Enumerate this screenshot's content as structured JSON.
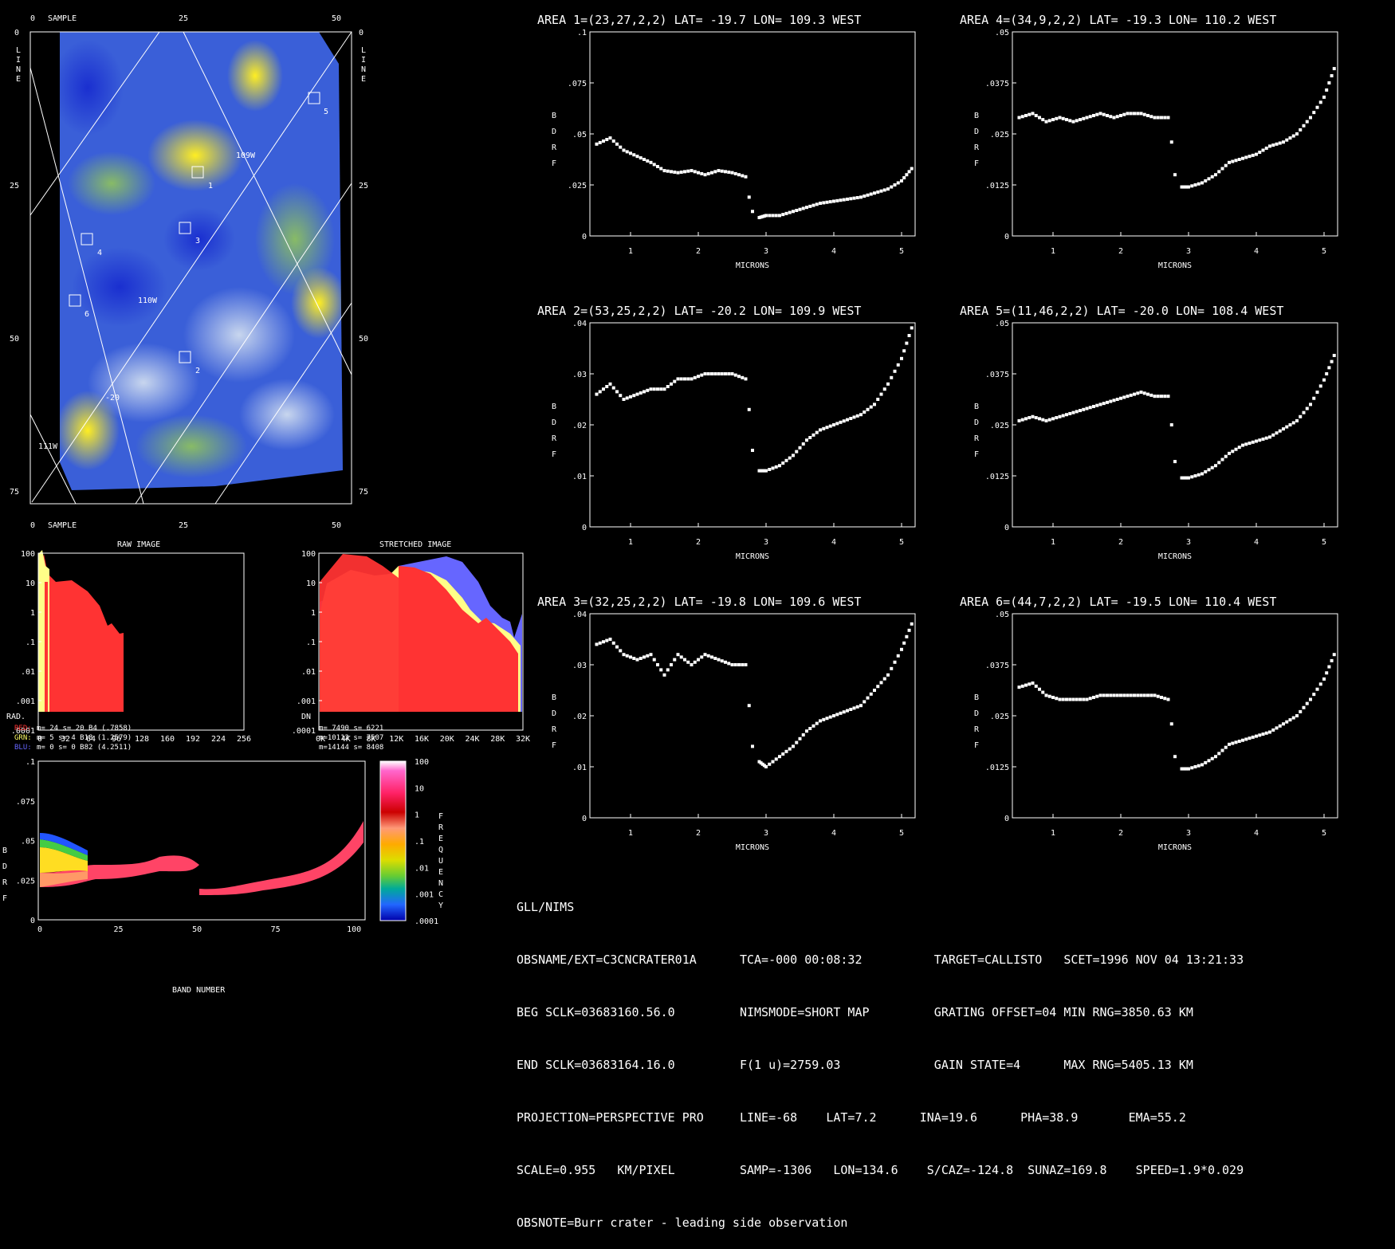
{
  "image_panel": {
    "sample_label": "SAMPLE",
    "line_label": [
      "L",
      "I",
      "N",
      "E"
    ],
    "sample_ticks": [
      "0",
      "25",
      "50"
    ],
    "line_ticks": [
      "0",
      "25",
      "50",
      "75"
    ],
    "area_markers": [
      "1",
      "2",
      "3",
      "4",
      "5",
      "6"
    ],
    "grid_labels": [
      "109W",
      "110W",
      "111W",
      "-20"
    ]
  },
  "histograms": {
    "raw": {
      "title": "RAW IMAGE",
      "y_ticks": [
        "100",
        "10",
        "1",
        ".1",
        ".01",
        ".001",
        ".0001"
      ],
      "x_ticks": [
        "0",
        "32",
        "64",
        "96",
        "128",
        "160",
        "192",
        "224",
        "256"
      ],
      "x_prefix": "RAD.",
      "stats": [
        {
          "label": "RED:",
          "text": "m=   24 s=   20 B4  (.7858)",
          "color": "#ff3333"
        },
        {
          "label": "GRN:",
          "text": "m=    5 s=    4 B18 (1.2579)",
          "color": "#ffff66"
        },
        {
          "label": "BLU:",
          "text": "m=    0 s=    0 B82 (4.2511)",
          "color": "#6666ff"
        }
      ]
    },
    "stretched": {
      "title": "STRETCHED IMAGE",
      "y_ticks": [
        "100",
        "10",
        "1",
        ".1",
        ".01",
        ".001",
        ".0001"
      ],
      "x_ticks": [
        "0K",
        "4K",
        "8K",
        "12K",
        "16K",
        "20K",
        "24K",
        "28K",
        "32K"
      ],
      "x_prefix": "DN",
      "stats": [
        "m= 7490 s= 6221",
        "m=10112 s= 7507",
        "m=14144 s= 8408"
      ]
    }
  },
  "density": {
    "ylabel": [
      "B",
      "D",
      "R",
      "F"
    ],
    "y_ticks": [
      ".1",
      ".075",
      ".05",
      ".025",
      "0"
    ],
    "x_ticks": [
      "0",
      "25",
      "50",
      "75",
      "100"
    ],
    "xlabel": "BAND NUMBER",
    "colorbar_ticks": [
      "100",
      "10",
      "1",
      ".1",
      ".01",
      ".001",
      ".0001"
    ],
    "colorbar_label": [
      "F",
      "R",
      "E",
      "Q",
      "U",
      "E",
      "N",
      "C",
      "Y"
    ]
  },
  "spectra_common": {
    "xlabel": "MICRONS",
    "ylabel": [
      "B",
      "D",
      "R",
      "F"
    ],
    "x_ticks": [
      "1",
      "2",
      "3",
      "4",
      "5"
    ]
  },
  "spectra": [
    {
      "title": "AREA 1=(23,27,2,2) LAT= -19.7 LON= 109.3 WEST",
      "y_ticks": [
        ".1",
        ".075",
        ".05",
        ".025",
        "0"
      ]
    },
    {
      "title": "AREA 4=(34,9,2,2) LAT= -19.3 LON= 110.2 WEST",
      "y_ticks": [
        ".05",
        ".0375",
        ".025",
        ".0125",
        "0"
      ]
    },
    {
      "title": "AREA 2=(53,25,2,2) LAT= -20.2 LON= 109.9 WEST",
      "y_ticks": [
        ".04",
        ".03",
        ".02",
        ".01",
        "0"
      ]
    },
    {
      "title": "AREA 5=(11,46,2,2) LAT= -20.0 LON= 108.4 WEST",
      "y_ticks": [
        ".05",
        ".0375",
        ".025",
        ".0125",
        "0"
      ]
    },
    {
      "title": "AREA 3=(32,25,2,2) LAT= -19.8 LON= 109.6 WEST",
      "y_ticks": [
        ".04",
        ".03",
        ".02",
        ".01",
        "0"
      ]
    },
    {
      "title": "AREA 6=(44,7,2,2) LAT= -19.5 LON= 110.4 WEST",
      "y_ticks": [
        ".05",
        ".0375",
        ".025",
        ".0125",
        "0"
      ]
    }
  ],
  "chart_data": [
    {
      "type": "scatter",
      "title": "AREA 1=(23,27,2,2) LAT= -19.7 LON= 109.3 WEST",
      "xlabel": "MICRONS",
      "ylabel": "BDRF",
      "xlim": [
        0.4,
        5.2
      ],
      "ylim": [
        0,
        0.1
      ],
      "x": [
        0.5,
        0.7,
        0.9,
        1.1,
        1.3,
        1.5,
        1.7,
        1.9,
        2.1,
        2.3,
        2.5,
        2.7,
        2.75,
        2.8,
        2.9,
        3.0,
        3.2,
        3.4,
        3.6,
        3.8,
        4.0,
        4.2,
        4.4,
        4.6,
        4.8,
        5.0,
        5.15
      ],
      "y": [
        0.045,
        0.048,
        0.042,
        0.039,
        0.036,
        0.032,
        0.031,
        0.032,
        0.03,
        0.032,
        0.031,
        0.029,
        0.019,
        0.012,
        0.009,
        0.01,
        0.01,
        0.012,
        0.014,
        0.016,
        0.017,
        0.018,
        0.019,
        0.021,
        0.023,
        0.027,
        0.033
      ]
    },
    {
      "type": "scatter",
      "title": "AREA 4=(34,9,2,2) LAT= -19.3 LON= 110.2 WEST",
      "xlabel": "MICRONS",
      "ylabel": "BDRF",
      "xlim": [
        0.4,
        5.2
      ],
      "ylim": [
        0,
        0.05
      ],
      "x": [
        0.5,
        0.7,
        0.9,
        1.1,
        1.3,
        1.5,
        1.7,
        1.9,
        2.1,
        2.3,
        2.5,
        2.7,
        2.75,
        2.8,
        2.9,
        3.0,
        3.2,
        3.4,
        3.6,
        3.8,
        4.0,
        4.2,
        4.4,
        4.6,
        4.8,
        5.0,
        5.15
      ],
      "y": [
        0.029,
        0.03,
        0.028,
        0.029,
        0.028,
        0.029,
        0.03,
        0.029,
        0.03,
        0.03,
        0.029,
        0.029,
        0.023,
        0.015,
        0.012,
        0.012,
        0.013,
        0.015,
        0.018,
        0.019,
        0.02,
        0.022,
        0.023,
        0.025,
        0.029,
        0.034,
        0.041
      ]
    },
    {
      "type": "scatter",
      "title": "AREA 2=(53,25,2,2) LAT= -20.2 LON= 109.9 WEST",
      "xlabel": "MICRONS",
      "ylabel": "BDRF",
      "xlim": [
        0.4,
        5.2
      ],
      "ylim": [
        0,
        0.04
      ],
      "x": [
        0.5,
        0.7,
        0.9,
        1.1,
        1.3,
        1.5,
        1.7,
        1.9,
        2.1,
        2.3,
        2.5,
        2.7,
        2.75,
        2.8,
        2.9,
        3.0,
        3.2,
        3.4,
        3.6,
        3.8,
        4.0,
        4.2,
        4.4,
        4.6,
        4.8,
        5.0,
        5.15
      ],
      "y": [
        0.026,
        0.028,
        0.025,
        0.026,
        0.027,
        0.027,
        0.029,
        0.029,
        0.03,
        0.03,
        0.03,
        0.029,
        0.023,
        0.015,
        0.011,
        0.011,
        0.012,
        0.014,
        0.017,
        0.019,
        0.02,
        0.021,
        0.022,
        0.024,
        0.028,
        0.033,
        0.039
      ]
    },
    {
      "type": "scatter",
      "title": "AREA 5=(11,46,2,2) LAT= -20.0 LON= 108.4 WEST",
      "xlabel": "MICRONS",
      "ylabel": "BDRF",
      "xlim": [
        0.4,
        5.2
      ],
      "ylim": [
        0,
        0.05
      ],
      "x": [
        0.5,
        0.7,
        0.9,
        1.1,
        1.3,
        1.5,
        1.7,
        1.9,
        2.1,
        2.3,
        2.5,
        2.7,
        2.75,
        2.8,
        2.9,
        3.0,
        3.2,
        3.4,
        3.6,
        3.8,
        4.0,
        4.2,
        4.4,
        4.6,
        4.8,
        5.0,
        5.15
      ],
      "y": [
        0.026,
        0.027,
        0.026,
        0.027,
        0.028,
        0.029,
        0.03,
        0.031,
        0.032,
        0.033,
        0.032,
        0.032,
        0.025,
        0.016,
        0.012,
        0.012,
        0.013,
        0.015,
        0.018,
        0.02,
        0.021,
        0.022,
        0.024,
        0.026,
        0.03,
        0.036,
        0.042
      ]
    },
    {
      "type": "scatter",
      "title": "AREA 3=(32,25,2,2) LAT= -19.8 LON= 109.6 WEST",
      "xlabel": "MICRONS",
      "ylabel": "BDRF",
      "xlim": [
        0.4,
        5.2
      ],
      "ylim": [
        0,
        0.04
      ],
      "x": [
        0.5,
        0.7,
        0.9,
        1.1,
        1.3,
        1.5,
        1.7,
        1.9,
        2.1,
        2.3,
        2.5,
        2.7,
        2.75,
        2.8,
        2.9,
        3.0,
        3.2,
        3.4,
        3.6,
        3.8,
        4.0,
        4.2,
        4.4,
        4.6,
        4.8,
        5.0,
        5.15
      ],
      "y": [
        0.034,
        0.035,
        0.032,
        0.031,
        0.032,
        0.028,
        0.032,
        0.03,
        0.032,
        0.031,
        0.03,
        0.03,
        0.022,
        0.014,
        0.011,
        0.01,
        0.012,
        0.014,
        0.017,
        0.019,
        0.02,
        0.021,
        0.022,
        0.025,
        0.028,
        0.033,
        0.038
      ]
    },
    {
      "type": "scatter",
      "title": "AREA 6=(44,7,2,2) LAT= -19.5 LON= 110.4 WEST",
      "xlabel": "MICRONS",
      "ylabel": "BDRF",
      "xlim": [
        0.4,
        5.2
      ],
      "ylim": [
        0,
        0.05
      ],
      "x": [
        0.5,
        0.7,
        0.9,
        1.1,
        1.3,
        1.5,
        1.7,
        1.9,
        2.1,
        2.3,
        2.5,
        2.7,
        2.75,
        2.8,
        2.9,
        3.0,
        3.2,
        3.4,
        3.6,
        3.8,
        4.0,
        4.2,
        4.4,
        4.6,
        4.8,
        5.0,
        5.15
      ],
      "y": [
        0.032,
        0.033,
        0.03,
        0.029,
        0.029,
        0.029,
        0.03,
        0.03,
        0.03,
        0.03,
        0.03,
        0.029,
        0.023,
        0.015,
        0.012,
        0.012,
        0.013,
        0.015,
        0.018,
        0.019,
        0.02,
        0.021,
        0.023,
        0.025,
        0.029,
        0.034,
        0.04
      ]
    }
  ],
  "info_block": [
    "GLL/NIMS",
    "OBSNAME/EXT=C3CNCRATER01A      TCA=-000 00:08:32          TARGET=CALLISTO   SCET=1996 NOV 04 13:21:33",
    "BEG SCLK=03683160.56.0         NIMSMODE=SHORT MAP         GRATING OFFSET=04 MIN RNG=3850.63 KM",
    "END SCLK=03683164.16.0         F(1 u)=2759.03             GAIN STATE=4      MAX RNG=5405.13 KM",
    "PROJECTION=PERSPECTIVE PRO     LINE=-68    LAT=7.2      INA=19.6      PHA=38.9       EMA=55.2",
    "SCALE=0.955   KM/PIXEL         SAMP=-1306   LON=134.6    S/CAZ=-124.8  SUNAZ=169.8    SPEED=1.9*0.029",
    "OBSNOTE=Burr crater - leading side observation"
  ]
}
